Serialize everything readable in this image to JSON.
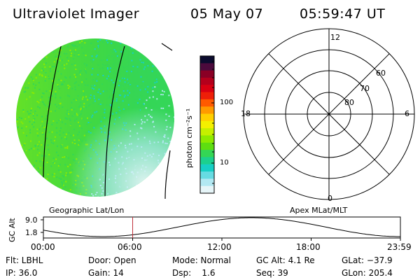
{
  "header": {
    "instrument": "Ultraviolet Imager",
    "date": "05 May 07",
    "time": "05:59:47 UT"
  },
  "colorbar": {
    "unit_label": "photon cm⁻²s⁻¹",
    "ticks": [
      "100",
      "10"
    ],
    "colors": [
      "#0b0b2e",
      "#4b0a3c",
      "#8a0025",
      "#b4001c",
      "#d90012",
      "#ee1f08",
      "#ff5a00",
      "#ff9a00",
      "#ffcf00",
      "#f4f000",
      "#c6f000",
      "#8eea00",
      "#5ede10",
      "#34d655",
      "#1cd08e",
      "#17cfc5",
      "#67dbe2",
      "#b2e8f2",
      "#e6f5f8"
    ]
  },
  "image_panel": {
    "label": "Geographic Lat/Lon",
    "colors": {
      "bright": "#34d655",
      "mid": "#8eea00",
      "cyan": "#17cfc5",
      "pale": "#b2e8f2",
      "white": "#e6f5f8"
    }
  },
  "polar_panel": {
    "label": "Apex MLat/MLT",
    "mlt_labels": {
      "top": "12",
      "left": "18",
      "right": "6",
      "bottom": "0"
    },
    "lat_labels": [
      "60",
      "70",
      "80"
    ]
  },
  "altitude_plot": {
    "ylabel": "GC Alt",
    "yticks": [
      "9.0",
      "1.8"
    ],
    "xticks": [
      "00:00",
      "06:00",
      "12:00",
      "18:00",
      "23:59"
    ],
    "marker_time_hours": 6.0,
    "marker_color": "#c0303a"
  },
  "info": {
    "filter": "Flt: LBHL",
    "door": "Door: Open",
    "mode": "Mode: Normal",
    "gc_alt": "GC Alt: 4.1 Re",
    "glat": "GLat: −37.9",
    "ip": "IP: 36.0",
    "gain": "Gain: 14",
    "dsp": "Dsp:    1.6",
    "seq": "Seq: 39",
    "glon": "GLon: 205.4"
  }
}
